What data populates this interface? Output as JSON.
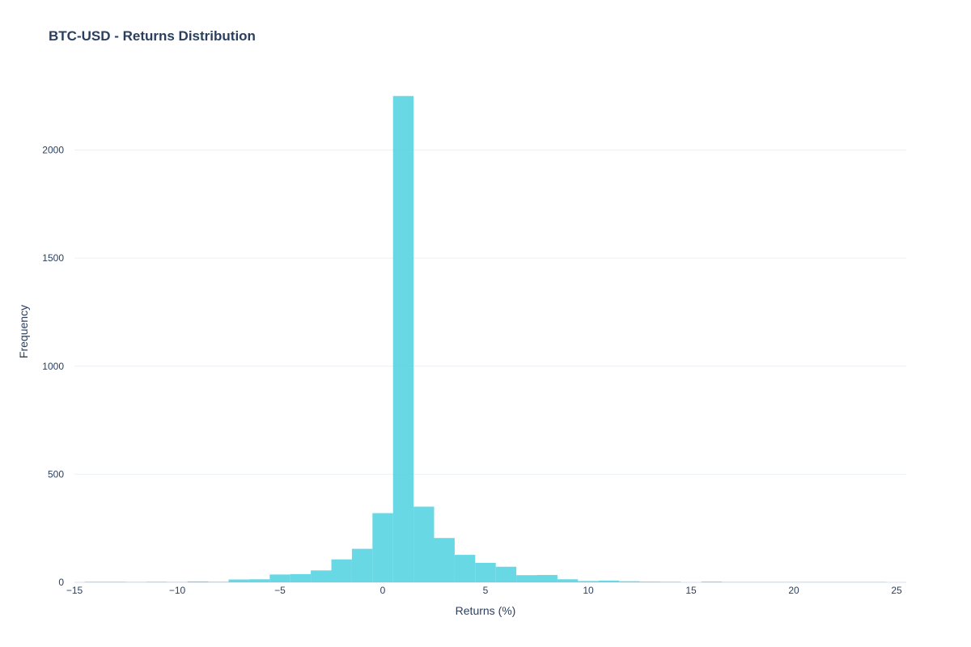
{
  "chart_data": {
    "type": "bar",
    "title": "BTC-USD - Returns Distribution",
    "xlabel": "Returns (%)",
    "ylabel": "Frequency",
    "xlim": [
      -15,
      25
    ],
    "ylim": [
      0,
      2350
    ],
    "xticks": [
      -15,
      -10,
      -5,
      0,
      5,
      10,
      15,
      20,
      25
    ],
    "xtick_labels": [
      "−15",
      "−10",
      "−5",
      "0",
      "5",
      "10",
      "15",
      "20",
      "25"
    ],
    "yticks": [
      0,
      500,
      1000,
      1500,
      2000
    ],
    "ytick_labels": [
      "0",
      "500",
      "1000",
      "1500",
      "2000"
    ],
    "bin_width": 1,
    "bin_starts": [
      -14.5,
      -13.5,
      -12.5,
      -11.5,
      -10.5,
      -9.5,
      -8.5,
      -7.5,
      -6.5,
      -5.5,
      -4.5,
      -3.5,
      -2.5,
      -1.5,
      -0.5,
      0.5,
      1.5,
      2.5,
      3.5,
      4.5,
      5.5,
      6.5,
      7.5,
      8.5,
      9.5,
      10.5,
      11.5,
      12.5,
      13.5,
      14.5,
      15.5,
      16.5,
      17.5,
      18.5,
      19.5,
      20.5,
      21.5,
      22.5,
      23.5
    ],
    "values": [
      2,
      2,
      1,
      2,
      1,
      4,
      2,
      13,
      14,
      36,
      38,
      55,
      106,
      155,
      320,
      2250,
      350,
      205,
      127,
      90,
      72,
      33,
      34,
      14,
      6,
      8,
      5,
      3,
      2,
      0,
      3,
      1,
      1,
      1,
      1,
      1,
      1,
      1,
      1
    ],
    "bar_color": "#4fd1e0",
    "grid": true,
    "legend": false
  }
}
